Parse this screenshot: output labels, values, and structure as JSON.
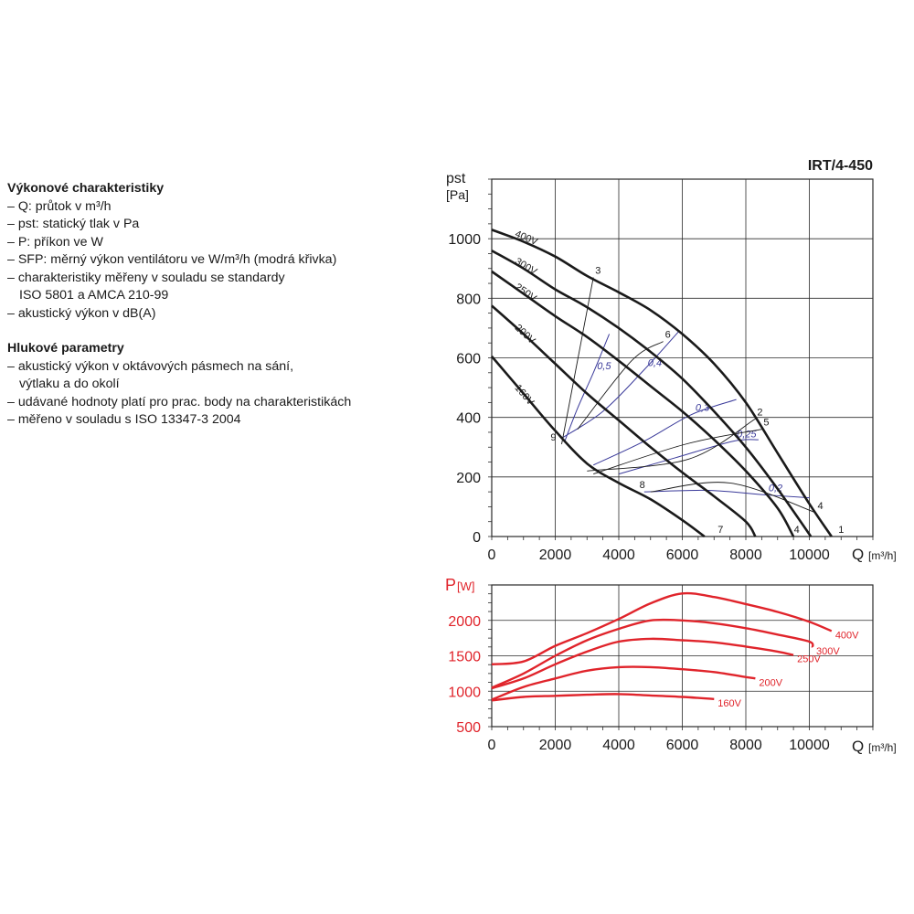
{
  "legend": {
    "title1": "Výkonové charakteristiky",
    "l1": "– Q: průtok v m³/h",
    "l2": "– pst: statický tlak v Pa",
    "l3": "– P: příkon ve W",
    "l4": "– SFP: měrný výkon ventilátoru ve W/m³/h (modrá křivka)",
    "l5": "– charakteristiky měřeny v souladu se standardy",
    "l6": "ISO 5801 a AMCA 210-99",
    "l7": "– akustický výkon v dB(A)",
    "title2": "Hlukové parametry",
    "l8": "– akustický výkon v oktávových pásmech na sání,",
    "l9": "výtlaku a do okolí",
    "l10": "– udávané hodnoty platí pro prac. body na charakteristikách",
    "l11": "– měřeno v souladu s ISO 13347-3 2004"
  },
  "colors": {
    "pressure": "#1a1a1a",
    "sfp": "#3a3a9a",
    "power": "#e0242b",
    "grid": "#2a2a2a"
  },
  "chart_data": [
    {
      "type": "line",
      "title": "IRT/4-450",
      "ylabel_main": "pst",
      "ylabel_unit": "[Pa]",
      "xlabel_main": "Q",
      "xlabel_unit": "[m³/h]",
      "xlim": [
        0,
        12000
      ],
      "ylim": [
        0,
        1200
      ],
      "xticks": [
        0,
        2000,
        4000,
        6000,
        8000,
        10000
      ],
      "xtick_labels": [
        "0",
        "2000",
        "4000",
        "6000",
        "8000",
        "10000"
      ],
      "yticks": [
        0,
        200,
        400,
        600,
        800,
        1000
      ],
      "ytick_labels": [
        "0",
        "200",
        "400",
        "600",
        "800",
        "1000"
      ],
      "grid": true,
      "series": [
        {
          "name": "400V",
          "points": [
            [
              0,
              1030
            ],
            [
              1000,
              990
            ],
            [
              2000,
              940
            ],
            [
              3000,
              875
            ],
            [
              4000,
              820
            ],
            [
              5000,
              760
            ],
            [
              6000,
              680
            ],
            [
              7000,
              580
            ],
            [
              8000,
              450
            ],
            [
              9000,
              280
            ],
            [
              10000,
              110
            ],
            [
              10700,
              0
            ]
          ]
        },
        {
          "name": "300V",
          "points": [
            [
              0,
              960
            ],
            [
              1000,
              900
            ],
            [
              2000,
              830
            ],
            [
              3000,
              770
            ],
            [
              4000,
              700
            ],
            [
              5000,
              620
            ],
            [
              6000,
              530
            ],
            [
              7000,
              420
            ],
            [
              8000,
              300
            ],
            [
              9000,
              160
            ],
            [
              10050,
              0
            ]
          ]
        },
        {
          "name": "250V",
          "points": [
            [
              0,
              890
            ],
            [
              1000,
              815
            ],
            [
              2000,
              740
            ],
            [
              3000,
              670
            ],
            [
              4000,
              590
            ],
            [
              5000,
              505
            ],
            [
              6000,
              420
            ],
            [
              7000,
              325
            ],
            [
              8000,
              220
            ],
            [
              9000,
              95
            ],
            [
              9500,
              0
            ]
          ]
        },
        {
          "name": "200V",
          "points": [
            [
              0,
              775
            ],
            [
              1000,
              680
            ],
            [
              2000,
              580
            ],
            [
              3000,
              480
            ],
            [
              4000,
              390
            ],
            [
              5000,
              300
            ],
            [
              6000,
              215
            ],
            [
              7000,
              135
            ],
            [
              8000,
              50
            ],
            [
              8300,
              0
            ]
          ]
        },
        {
          "name": "160V",
          "points": [
            [
              0,
              605
            ],
            [
              1000,
              480
            ],
            [
              2000,
              355
            ],
            [
              3000,
              245
            ],
            [
              4000,
              180
            ],
            [
              5000,
              125
            ],
            [
              6000,
              55
            ],
            [
              6700,
              0
            ]
          ]
        }
      ],
      "sfp_curves": [
        {
          "label": "0,5",
          "points": [
            [
              2300,
              320
            ],
            [
              2700,
              430
            ],
            [
              3200,
              550
            ],
            [
              3700,
              680
            ]
          ]
        },
        {
          "label": "0,4",
          "points": [
            [
              2200,
              330
            ],
            [
              3500,
              420
            ],
            [
              4800,
              560
            ],
            [
              5900,
              690
            ]
          ]
        },
        {
          "label": "0,3",
          "points": [
            [
              3200,
              240
            ],
            [
              4800,
              320
            ],
            [
              6300,
              410
            ],
            [
              7700,
              460
            ]
          ]
        },
        {
          "label": "0,25",
          "points": [
            [
              4000,
              210
            ],
            [
              5800,
              265
            ],
            [
              7600,
              320
            ],
            [
              8400,
              325
            ]
          ]
        },
        {
          "label": "0,2",
          "points": [
            [
              4800,
              150
            ],
            [
              6800,
              155
            ],
            [
              8600,
              140
            ],
            [
              10000,
              130
            ]
          ]
        }
      ],
      "system_curves": [
        {
          "points": [
            [
              2200,
              310
            ],
            [
              3200,
              870
            ]
          ],
          "end_labels": [
            "9",
            "3"
          ]
        },
        {
          "points": [
            [
              2700,
              360
            ],
            [
              4400,
              590
            ],
            [
              5400,
              655
            ]
          ],
          "end_labels": [
            "",
            "6"
          ]
        },
        {
          "points": [
            [
              3200,
              210
            ],
            [
              6100,
              310
            ],
            [
              8500,
              360
            ]
          ],
          "end_labels": [
            "",
            "5"
          ]
        },
        {
          "points": [
            [
              5000,
              150
            ],
            [
              7500,
              180
            ],
            [
              10200,
              80
            ]
          ],
          "end_labels": [
            "8",
            "4"
          ]
        },
        {
          "points": [
            [
              3000,
              220
            ],
            [
              6200,
              260
            ],
            [
              8300,
              395
            ]
          ],
          "end_labels": [
            "",
            "2"
          ]
        }
      ],
      "point_labels": [
        {
          "text": "1",
          "x": 10800,
          "y": 0
        },
        {
          "text": "4",
          "x": 9400,
          "y": 0
        },
        {
          "text": "7",
          "x": 7000,
          "y": 0
        }
      ]
    },
    {
      "type": "line",
      "ylabel_main": "P",
      "ylabel_unit": "[W]",
      "xlabel_main": "Q",
      "xlabel_unit": "[m³/h]",
      "xlim": [
        0,
        12000
      ],
      "ylim": [
        500,
        2500
      ],
      "xticks": [
        0,
        2000,
        4000,
        6000,
        8000,
        10000
      ],
      "xtick_labels": [
        "0",
        "2000",
        "4000",
        "6000",
        "8000",
        "10000"
      ],
      "yticks": [
        500,
        1000,
        1500,
        2000
      ],
      "ytick_labels": [
        "500",
        "1000",
        "1500",
        "2000"
      ],
      "grid": true,
      "series": [
        {
          "name": "400V",
          "points": [
            [
              0,
              1380
            ],
            [
              1000,
              1420
            ],
            [
              2000,
              1640
            ],
            [
              3000,
              1820
            ],
            [
              4000,
              2020
            ],
            [
              5000,
              2240
            ],
            [
              6000,
              2380
            ],
            [
              7000,
              2330
            ],
            [
              8000,
              2230
            ],
            [
              9000,
              2120
            ],
            [
              10000,
              1980
            ],
            [
              10700,
              1850
            ]
          ]
        },
        {
          "name": "300V",
          "points": [
            [
              0,
              1050
            ],
            [
              1000,
              1250
            ],
            [
              2000,
              1500
            ],
            [
              3000,
              1720
            ],
            [
              4000,
              1880
            ],
            [
              5000,
              2000
            ],
            [
              6000,
              2000
            ],
            [
              7000,
              1960
            ],
            [
              8000,
              1890
            ],
            [
              9000,
              1800
            ],
            [
              10000,
              1700
            ],
            [
              10100,
              1620
            ]
          ]
        },
        {
          "name": "250V",
          "points": [
            [
              0,
              1040
            ],
            [
              1000,
              1180
            ],
            [
              2000,
              1380
            ],
            [
              3000,
              1560
            ],
            [
              4000,
              1700
            ],
            [
              5000,
              1740
            ],
            [
              6000,
              1720
            ],
            [
              7000,
              1690
            ],
            [
              8000,
              1630
            ],
            [
              9000,
              1560
            ],
            [
              9500,
              1510
            ]
          ]
        },
        {
          "name": "200V",
          "points": [
            [
              0,
              880
            ],
            [
              1000,
              1060
            ],
            [
              2000,
              1180
            ],
            [
              3000,
              1290
            ],
            [
              4000,
              1340
            ],
            [
              5000,
              1340
            ],
            [
              6000,
              1310
            ],
            [
              7000,
              1270
            ],
            [
              8000,
              1200
            ],
            [
              8300,
              1180
            ]
          ]
        },
        {
          "name": "160V",
          "points": [
            [
              0,
              870
            ],
            [
              1000,
              920
            ],
            [
              2000,
              935
            ],
            [
              3000,
              950
            ],
            [
              4000,
              960
            ],
            [
              5000,
              940
            ],
            [
              6000,
              920
            ],
            [
              7000,
              890
            ]
          ]
        }
      ]
    }
  ]
}
